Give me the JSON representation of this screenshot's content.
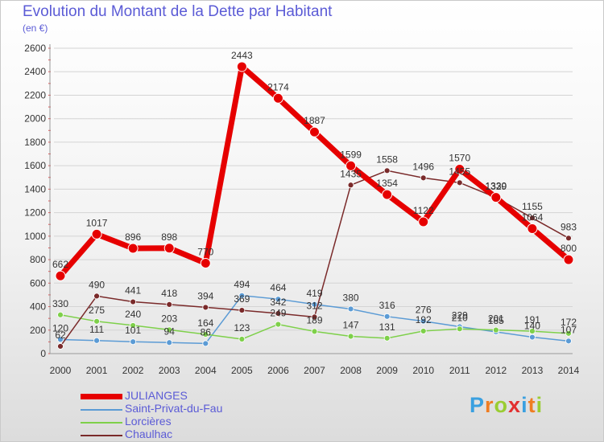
{
  "header": {
    "title": "Evolution du Montant de la Dette par Habitant",
    "subtitle": "(en €)"
  },
  "brand": {
    "text": "Proxiti",
    "letter_colors": [
      "#3aa0e0",
      "#ef7d22",
      "#9acd32",
      "#e23030",
      "#3aa0e0",
      "#ef7d22",
      "#9acd32"
    ]
  },
  "chart_data": {
    "type": "line",
    "x": [
      "2000",
      "2001",
      "2002",
      "2003",
      "2004",
      "2005",
      "2006",
      "2007",
      "2008",
      "2009",
      "2010",
      "2011",
      "2012",
      "2013",
      "2014"
    ],
    "ylim": [
      0,
      2600
    ],
    "yticks": [
      "0",
      "200",
      "400",
      "600",
      "800",
      "1000",
      "1200",
      "1400",
      "1600",
      "1800",
      "2000",
      "2200",
      "2400",
      "2600"
    ],
    "grid": true,
    "legend_position": "bottom-left",
    "series": [
      {
        "name": "JULIANGES",
        "color": "#e60000",
        "values": [
          662,
          1017,
          896,
          898,
          770,
          2443,
          2174,
          1887,
          1599,
          1354,
          1122,
          1570,
          1330,
          1064,
          800
        ],
        "labels": [
          "662",
          "1017",
          "896",
          "898",
          "770",
          "2443",
          "2174",
          "1887",
          "1599",
          "1354",
          "1122",
          "1570",
          "1330",
          "1064",
          "800"
        ]
      },
      {
        "name": "Saint-Privat-du-Fau",
        "color": "#5b9bd5",
        "values": [
          120,
          111,
          101,
          94,
          86,
          494,
          464,
          419,
          380,
          316,
          276,
          229,
          185,
          140,
          107
        ],
        "labels": [
          "120",
          "111",
          "101",
          "94",
          "86",
          "494",
          "464",
          "419",
          "380",
          "316",
          "276",
          "229",
          "185",
          "140",
          "107"
        ]
      },
      {
        "name": "Lorcières",
        "color": "#7ed04a",
        "values": [
          330,
          275,
          240,
          203,
          164,
          123,
          249,
          189,
          147,
          131,
          192,
          210,
          201,
          191,
          172
        ],
        "labels": [
          "330",
          "275",
          "240",
          "203",
          "164",
          "123",
          "249",
          "189",
          "147",
          "131",
          "192",
          "210",
          "201",
          "191",
          "172"
        ]
      },
      {
        "name": "Chaulhac",
        "color": "#7a2a2a",
        "values": [
          62,
          490,
          441,
          418,
          394,
          369,
          342,
          312,
          1435,
          1558,
          1496,
          1455,
          1329,
          1155,
          983
        ],
        "labels": [
          "62",
          "490",
          "441",
          "418",
          "394",
          "369",
          "342",
          "312",
          "1435",
          "1558",
          "1496",
          "1455",
          "1329",
          "1155",
          "983"
        ]
      }
    ]
  }
}
